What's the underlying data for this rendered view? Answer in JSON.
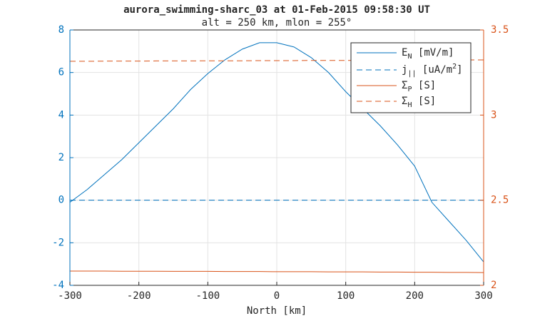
{
  "chart_data": {
    "type": "line",
    "title": "aurora_swimming-sharc_03 at 01-Feb-2015 09:58:30 UT",
    "subtitle": "alt = 250 km, mlon = 255°",
    "xlabel": "North [km]",
    "x": [
      -300,
      -275,
      -250,
      -225,
      -200,
      -175,
      -150,
      -125,
      -100,
      -75,
      -50,
      -25,
      0,
      25,
      50,
      75,
      100,
      125,
      150,
      175,
      200,
      225,
      250,
      275,
      300
    ],
    "xlim": [
      -300,
      300
    ],
    "xticks": [
      -300,
      -200,
      -100,
      0,
      100,
      200,
      300
    ],
    "ylim": [
      -4,
      8
    ],
    "yticks": [
      -4,
      -2,
      0,
      2,
      4,
      6,
      8
    ],
    "y2lim": [
      2,
      3.5
    ],
    "y2ticks": [
      2,
      2.5,
      3,
      3.5
    ],
    "grid": true,
    "legend": "top-right",
    "series": [
      {
        "name": "E_N [mV/m]",
        "color": "#0072BD",
        "dash": false,
        "values": [
          -0.1,
          0.5,
          1.2,
          1.9,
          2.7,
          3.5,
          4.3,
          5.2,
          5.95,
          6.6,
          7.1,
          7.4,
          7.4,
          7.2,
          6.7,
          6.0,
          5.1,
          4.3,
          3.5,
          2.6,
          1.6,
          -0.1,
          -1.0,
          -1.9,
          -2.9
        ]
      },
      {
        "name": "j_{||} [uA/m^2]",
        "color": "#0072BD",
        "dash": true,
        "values": [
          0,
          0,
          0,
          0,
          0,
          0,
          0,
          0,
          0,
          0,
          0,
          0,
          0,
          0,
          0,
          0,
          0,
          0,
          0,
          0,
          0,
          0,
          0,
          0,
          0
        ]
      },
      {
        "name": "Σ_P [S]",
        "color": "#D95319",
        "dash": false,
        "axis": "y2",
        "values": [
          2.084,
          2.084,
          2.084,
          2.083,
          2.083,
          2.083,
          2.082,
          2.082,
          2.082,
          2.081,
          2.081,
          2.081,
          2.08,
          2.08,
          2.08,
          2.079,
          2.079,
          2.079,
          2.078,
          2.078,
          2.077,
          2.077,
          2.076,
          2.076,
          2.075
        ]
      },
      {
        "name": "Σ_H [S]",
        "color": "#D95319",
        "dash": true,
        "axis": "y2",
        "values": [
          3.316,
          3.316,
          3.317,
          3.317,
          3.317,
          3.318,
          3.318,
          3.318,
          3.319,
          3.319,
          3.319,
          3.32,
          3.32,
          3.32,
          3.321,
          3.321,
          3.321,
          3.322,
          3.322,
          3.322,
          3.323,
          3.323,
          3.323,
          3.324,
          3.324
        ]
      }
    ]
  }
}
